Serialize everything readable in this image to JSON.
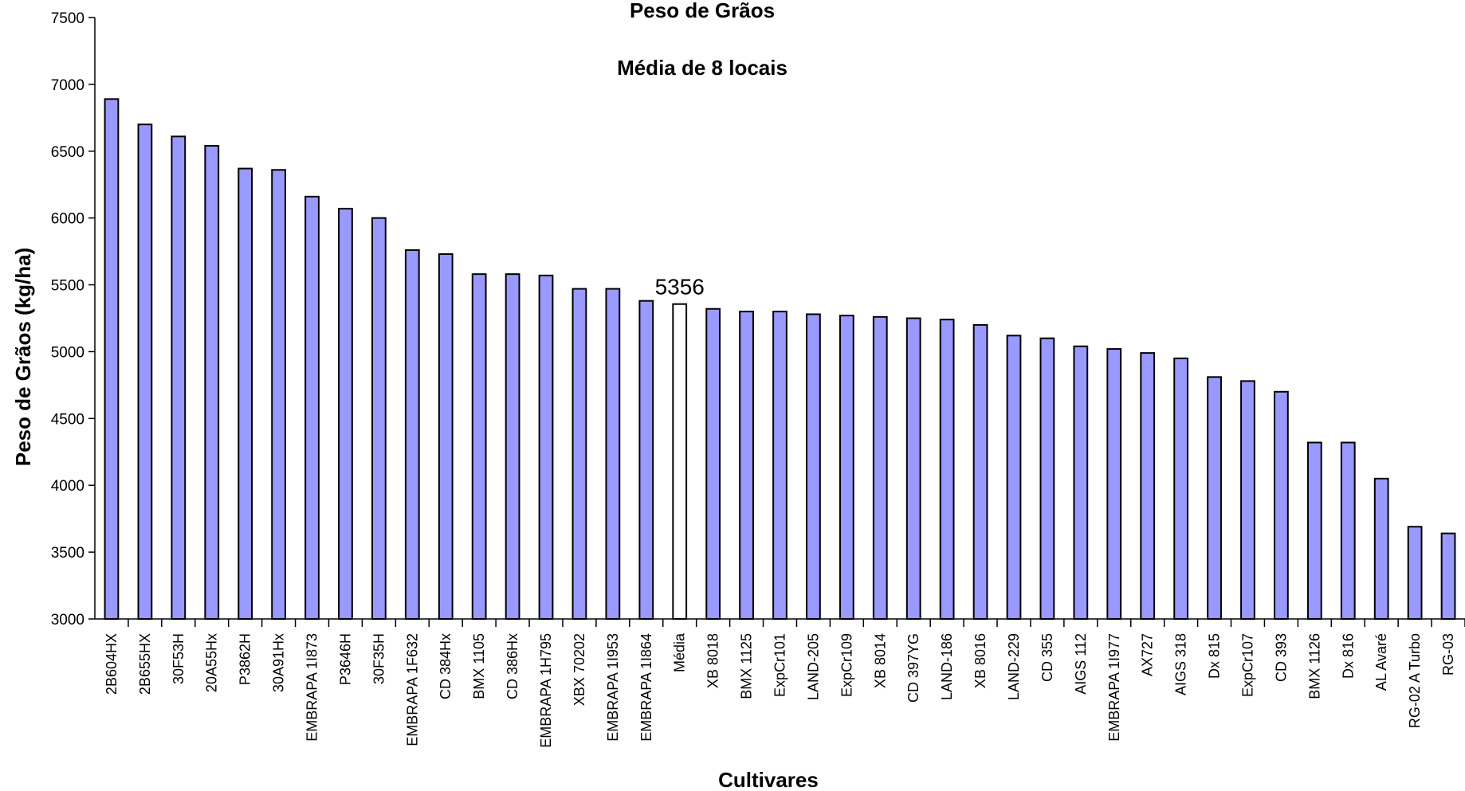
{
  "chart_data": {
    "type": "bar",
    "title": "Peso de Grãos",
    "subtitle": "Média de 8 locais",
    "xlabel": "Cultivares",
    "ylabel": "Peso de Grãos (kg/ha)",
    "ylim": [
      3000,
      7500
    ],
    "yticks": [
      3000,
      3500,
      4000,
      4500,
      5000,
      5500,
      6000,
      6500,
      7000,
      7500
    ],
    "grid": false,
    "legend": "none",
    "colors": {
      "bar": "#9999ff",
      "highlight": "#ffffff",
      "outline": "#000000"
    },
    "categories": [
      "2B604HX",
      "2B655HX",
      "30F53H",
      "20A55Hx",
      "P3862H",
      "30A91Hx",
      "EMBRAPA 1I873",
      "P3646H",
      "30F35H",
      "EMBRAPA 1F632",
      "CD 384Hx",
      "BMX 1105",
      "CD 386Hx",
      "EMBRAPA 1H795",
      "XBX 70202",
      "EMBRAPA 1I953",
      "EMBRAPA 1I864",
      "Média",
      "XB 8018",
      "BMX 1125",
      "ExpCr101",
      "LAND-205",
      "ExpCr109",
      "XB 8014",
      "CD 397YG",
      "LAND-186",
      "XB 8016",
      "LAND-229",
      "CD 355",
      "AIGS 112",
      "EMBRAPA 1I977",
      "AX727",
      "AIGS 318",
      "Dx 815",
      "ExpCr107",
      "CD 393",
      "BMX 1126",
      "Dx 816",
      "AL Avaré",
      "RG-02 A Turbo",
      "RG-03"
    ],
    "values": [
      6890,
      6700,
      6610,
      6540,
      6370,
      6360,
      6160,
      6070,
      6000,
      5760,
      5730,
      5580,
      5580,
      5570,
      5470,
      5470,
      5380,
      5356,
      5320,
      5300,
      5300,
      5280,
      5270,
      5260,
      5250,
      5240,
      5200,
      5120,
      5100,
      5040,
      5020,
      4990,
      4950,
      4810,
      4780,
      4700,
      4320,
      4320,
      4050,
      3690,
      3640
    ],
    "highlight_category": "Média",
    "data_labels": [
      {
        "category": "Média",
        "text": "5356"
      }
    ]
  }
}
